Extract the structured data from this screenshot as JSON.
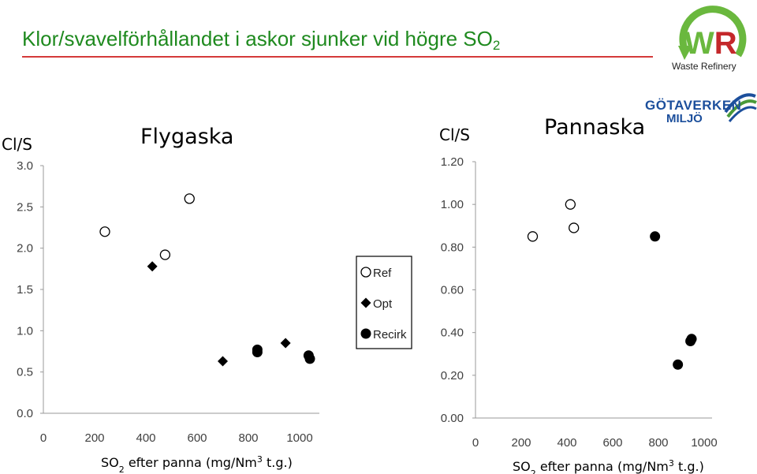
{
  "slide": {
    "title_main": "Klor/svavelförhållandet i askor sjunker vid högre SO",
    "title_sub": "2"
  },
  "logos": {
    "waste_refinery": {
      "letters": "WR",
      "text": "Waste Refinery",
      "color_green": "#6ab83e",
      "color_red": "#c4282b"
    },
    "gotaverken": {
      "text1": "GÖTAVERKEN",
      "text2": "MILJÖ",
      "color": "#1c4f9c"
    }
  },
  "legend": {
    "items": [
      {
        "label": "Ref",
        "marker": "circle-open"
      },
      {
        "label": "Opt",
        "marker": "diamond-filled"
      },
      {
        "label": "Recirk",
        "marker": "circle-filled"
      }
    ]
  },
  "chart_data": [
    {
      "type": "scatter",
      "title": "Flygaska",
      "ylabel": "Cl/S",
      "xlabel_parts": [
        "SO",
        "2",
        " efter panna (mg/Nm",
        "3",
        " t.g.)"
      ],
      "xlim": [
        0,
        1000
      ],
      "ylim": [
        0,
        3
      ],
      "xticks": [
        0,
        200,
        400,
        600,
        800,
        1000
      ],
      "yticks": [
        0,
        0.5,
        1,
        1.5,
        2,
        2.5,
        3
      ],
      "ytick_labels": [
        "0.0",
        "0.5",
        "1.0",
        "1.5",
        "2.0",
        "2.5",
        "3.0"
      ],
      "grid": false,
      "series": [
        {
          "name": "Ref",
          "marker": "circle-open",
          "points": [
            [
              240,
              2.2
            ],
            [
              475,
              1.92
            ],
            [
              570,
              2.6
            ]
          ]
        },
        {
          "name": "Opt",
          "marker": "diamond-filled",
          "points": [
            [
              425,
              1.78
            ],
            [
              700,
              0.63
            ],
            [
              945,
              0.85
            ]
          ]
        },
        {
          "name": "Recirk",
          "marker": "circle-filled",
          "points": [
            [
              835,
              0.77
            ],
            [
              835,
              0.74
            ],
            [
              1035,
              0.7
            ],
            [
              1040,
              0.66
            ]
          ]
        }
      ]
    },
    {
      "type": "scatter",
      "title": "Pannaska",
      "ylabel": "Cl/S",
      "xlabel_parts": [
        "SO",
        "2",
        " efter panna (mg/Nm",
        "3",
        " t.g.)"
      ],
      "xlim": [
        0,
        1000
      ],
      "ylim": [
        0,
        1.2
      ],
      "xticks": [
        0,
        200,
        400,
        600,
        800,
        1000
      ],
      "yticks": [
        0,
        0.2,
        0.4,
        0.6,
        0.8,
        1.0,
        1.2
      ],
      "ytick_labels": [
        "0.00",
        "0.20",
        "0.40",
        "0.60",
        "0.80",
        "1.00",
        "1.20"
      ],
      "grid": false,
      "series": [
        {
          "name": "Ref",
          "marker": "circle-open",
          "points": [
            [
              250,
              0.85
            ],
            [
              415,
              1.0
            ],
            [
              430,
              0.89
            ]
          ]
        },
        {
          "name": "Recirk",
          "marker": "circle-filled",
          "points": [
            [
              785,
              0.85
            ],
            [
              885,
              0.25
            ],
            [
              940,
              0.36
            ],
            [
              945,
              0.37
            ]
          ]
        }
      ]
    }
  ]
}
